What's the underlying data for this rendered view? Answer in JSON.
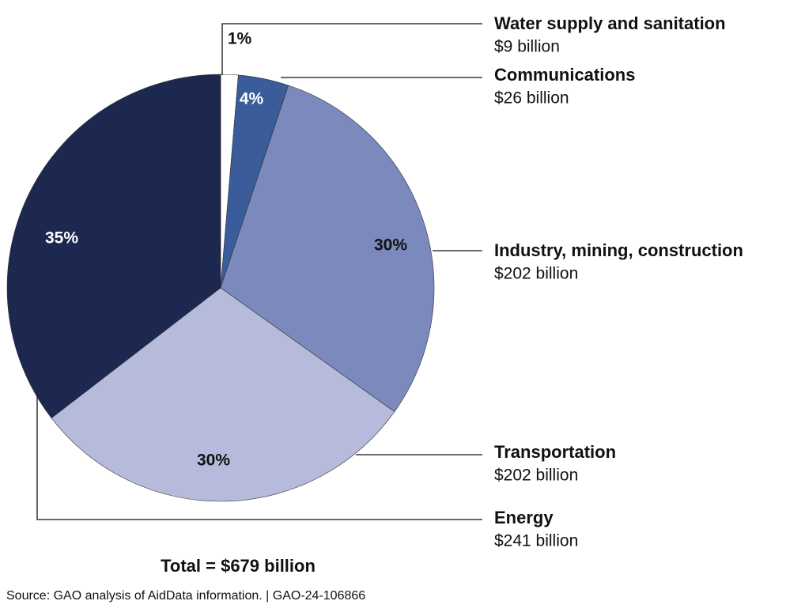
{
  "chart_data": {
    "type": "pie",
    "categories": [
      "Water supply and sanitation",
      "Communications",
      "Industry, mining, construction",
      "Transportation",
      "Energy"
    ],
    "values": [
      9,
      26,
      202,
      202,
      241
    ],
    "value_labels": [
      "$9 billion",
      "$26 billion",
      "$202 billion",
      "$202 billion",
      "$241 billion"
    ],
    "percent_labels": [
      "1%",
      "4%",
      "30%",
      "30%",
      "35%"
    ],
    "colors": [
      "#ffffff",
      "#3b5c9a",
      "#7b89bd",
      "#b6bbdc",
      "#1c2850"
    ],
    "total_label": "Total = $679 billion",
    "source": "Source: GAO analysis of AidData information.  |  GAO-24-106866"
  }
}
